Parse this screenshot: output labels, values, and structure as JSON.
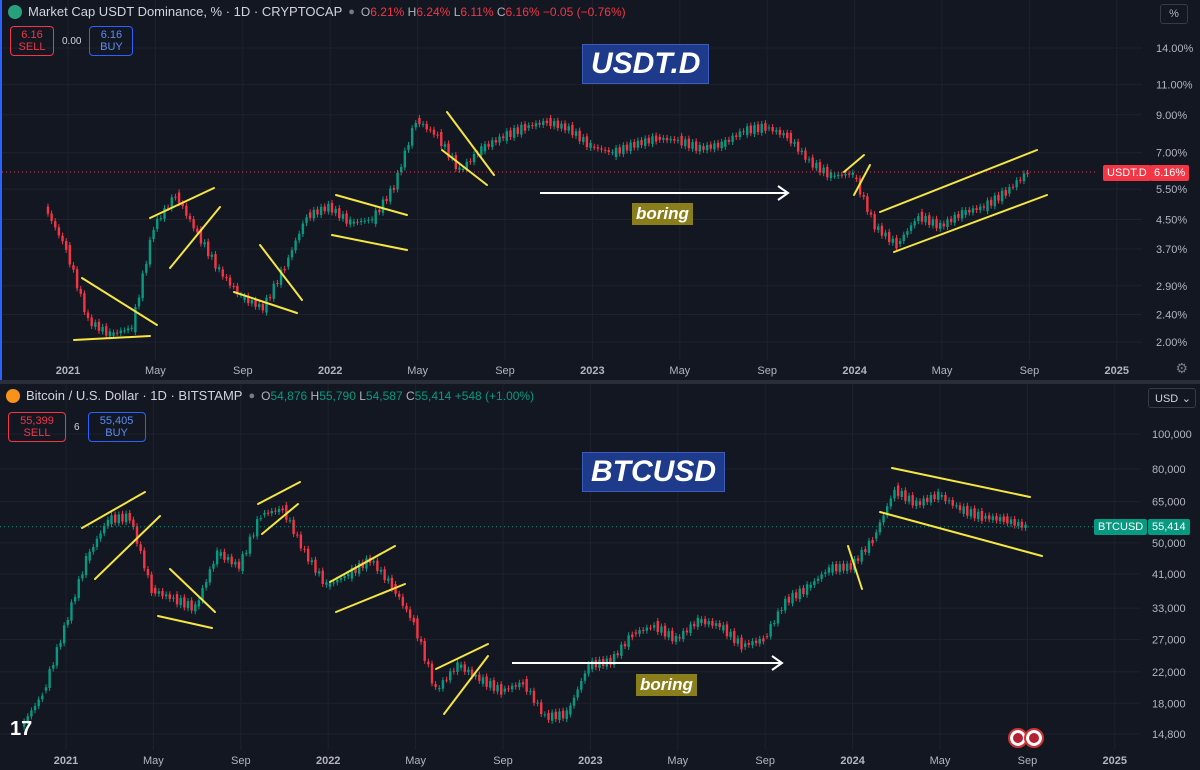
{
  "pane1": {
    "title": "Market Cap USDT Dominance, % · 1D · CRYPTOCAP",
    "ohlc": {
      "o": "6.21%",
      "h": "6.24%",
      "l": "6.11%",
      "c": "6.16%",
      "chg": "−0.05 (−0.76%)"
    },
    "sell": {
      "price": "6.16",
      "label": "SELL"
    },
    "spread": "0.00",
    "buy": {
      "price": "6.16",
      "label": "BUY"
    },
    "big_label": "USDT.D",
    "boring_label": "boring",
    "scale_button": "%",
    "price_tag": {
      "name": "USDT.D",
      "value": "6.16%"
    }
  },
  "pane2": {
    "title": "Bitcoin / U.S. Dollar · 1D · BITSTAMP",
    "ohlc": {
      "o": "54,876",
      "h": "55,790",
      "l": "54,587",
      "c": "55,414",
      "chg": "+548 (+1.00%)"
    },
    "sell": {
      "price": "55,399",
      "label": "SELL"
    },
    "spread": "6",
    "buy": {
      "price": "55,405",
      "label": "BUY"
    },
    "big_label": "BTCUSD",
    "boring_label": "boring",
    "currency": "USD",
    "price_tag": {
      "name": "BTCUSD",
      "value": "55,414"
    }
  },
  "colors": {
    "bg": "#131722",
    "up": "#089981",
    "down": "#f23645",
    "annot": "#f5e642",
    "arrow": "#ffffff"
  },
  "chart_data": [
    {
      "type": "line",
      "title": "Market Cap USDT Dominance, %",
      "scale": "log",
      "y_ticks": [
        "14.00%",
        "11.00%",
        "9.00%",
        "7.00%",
        "5.50%",
        "4.50%",
        "3.70%",
        "2.90%",
        "2.40%",
        "2.00%"
      ],
      "y_tick_values": [
        14,
        11,
        9,
        7,
        5.5,
        4.5,
        3.7,
        2.9,
        2.4,
        2.0
      ],
      "x_ticks": [
        "2021",
        "May",
        "Sep",
        "2022",
        "May",
        "Sep",
        "2023",
        "May",
        "Sep",
        "2024",
        "May",
        "Sep",
        "2025"
      ],
      "x": [
        "2020-12",
        "2021-01",
        "2021-02",
        "2021-03",
        "2021-04",
        "2021-05",
        "2021-06",
        "2021-07",
        "2021-08",
        "2021-09",
        "2021-10",
        "2021-11",
        "2021-12",
        "2022-01",
        "2022-02",
        "2022-03",
        "2022-04",
        "2022-05",
        "2022-06",
        "2022-07",
        "2022-08",
        "2022-09",
        "2022-10",
        "2022-11",
        "2022-12",
        "2023-01",
        "2023-02",
        "2023-03",
        "2023-04",
        "2023-05",
        "2023-06",
        "2023-07",
        "2023-08",
        "2023-09",
        "2023-10",
        "2023-11",
        "2023-12",
        "2024-01",
        "2024-02",
        "2024-03",
        "2024-04",
        "2024-05",
        "2024-06",
        "2024-07",
        "2024-08",
        "2024-09"
      ],
      "values": [
        4.9,
        3.7,
        2.3,
        2.1,
        2.2,
        4.3,
        5.3,
        4.1,
        3.2,
        2.7,
        2.5,
        3.3,
        4.6,
        4.9,
        4.4,
        4.5,
        5.6,
        8.7,
        7.8,
        6.2,
        7.2,
        7.8,
        8.3,
        8.6,
        8.2,
        7.3,
        7.0,
        7.4,
        7.7,
        7.6,
        7.2,
        7.4,
        8.1,
        8.3,
        7.8,
        6.6,
        6.0,
        6.1,
        4.3,
        3.8,
        4.6,
        4.3,
        4.7,
        4.9,
        5.4,
        6.16
      ],
      "last_value": 6.16
    },
    {
      "type": "line",
      "title": "Bitcoin / U.S. Dollar",
      "scale": "log",
      "y_ticks": [
        "100,000",
        "80,000",
        "65,000",
        "50,000",
        "41,000",
        "33,000",
        "27,000",
        "22,000",
        "18,000",
        "14,800"
      ],
      "y_tick_values": [
        100000,
        80000,
        65000,
        50000,
        41000,
        33000,
        27000,
        22000,
        18000,
        14800
      ],
      "x_ticks": [
        "2021",
        "May",
        "Sep",
        "2022",
        "May",
        "Sep",
        "2023",
        "May",
        "Sep",
        "2024",
        "May",
        "Sep",
        "2025"
      ],
      "x": [
        "2020-11",
        "2020-12",
        "2021-01",
        "2021-02",
        "2021-03",
        "2021-04",
        "2021-05",
        "2021-06",
        "2021-07",
        "2021-08",
        "2021-09",
        "2021-10",
        "2021-11",
        "2021-12",
        "2022-01",
        "2022-02",
        "2022-03",
        "2022-04",
        "2022-05",
        "2022-06",
        "2022-07",
        "2022-08",
        "2022-09",
        "2022-10",
        "2022-11",
        "2022-12",
        "2023-01",
        "2023-02",
        "2023-03",
        "2023-04",
        "2023-05",
        "2023-06",
        "2023-07",
        "2023-08",
        "2023-09",
        "2023-10",
        "2023-11",
        "2023-12",
        "2024-01",
        "2024-02",
        "2024-03",
        "2024-04",
        "2024-05",
        "2024-06",
        "2024-07",
        "2024-08",
        "2024-09"
      ],
      "values": [
        15500,
        19000,
        29000,
        45000,
        58000,
        59000,
        37000,
        35000,
        33000,
        47000,
        43000,
        60000,
        62000,
        47000,
        38000,
        41000,
        45000,
        38000,
        30000,
        19500,
        23000,
        21000,
        19500,
        20500,
        16500,
        16800,
        23000,
        23500,
        28000,
        29500,
        27000,
        30500,
        29500,
        26000,
        27000,
        34500,
        37500,
        42500,
        43000,
        51000,
        70000,
        64000,
        68000,
        62000,
        59000,
        58000,
        55414
      ],
      "last_value": 55414
    }
  ]
}
